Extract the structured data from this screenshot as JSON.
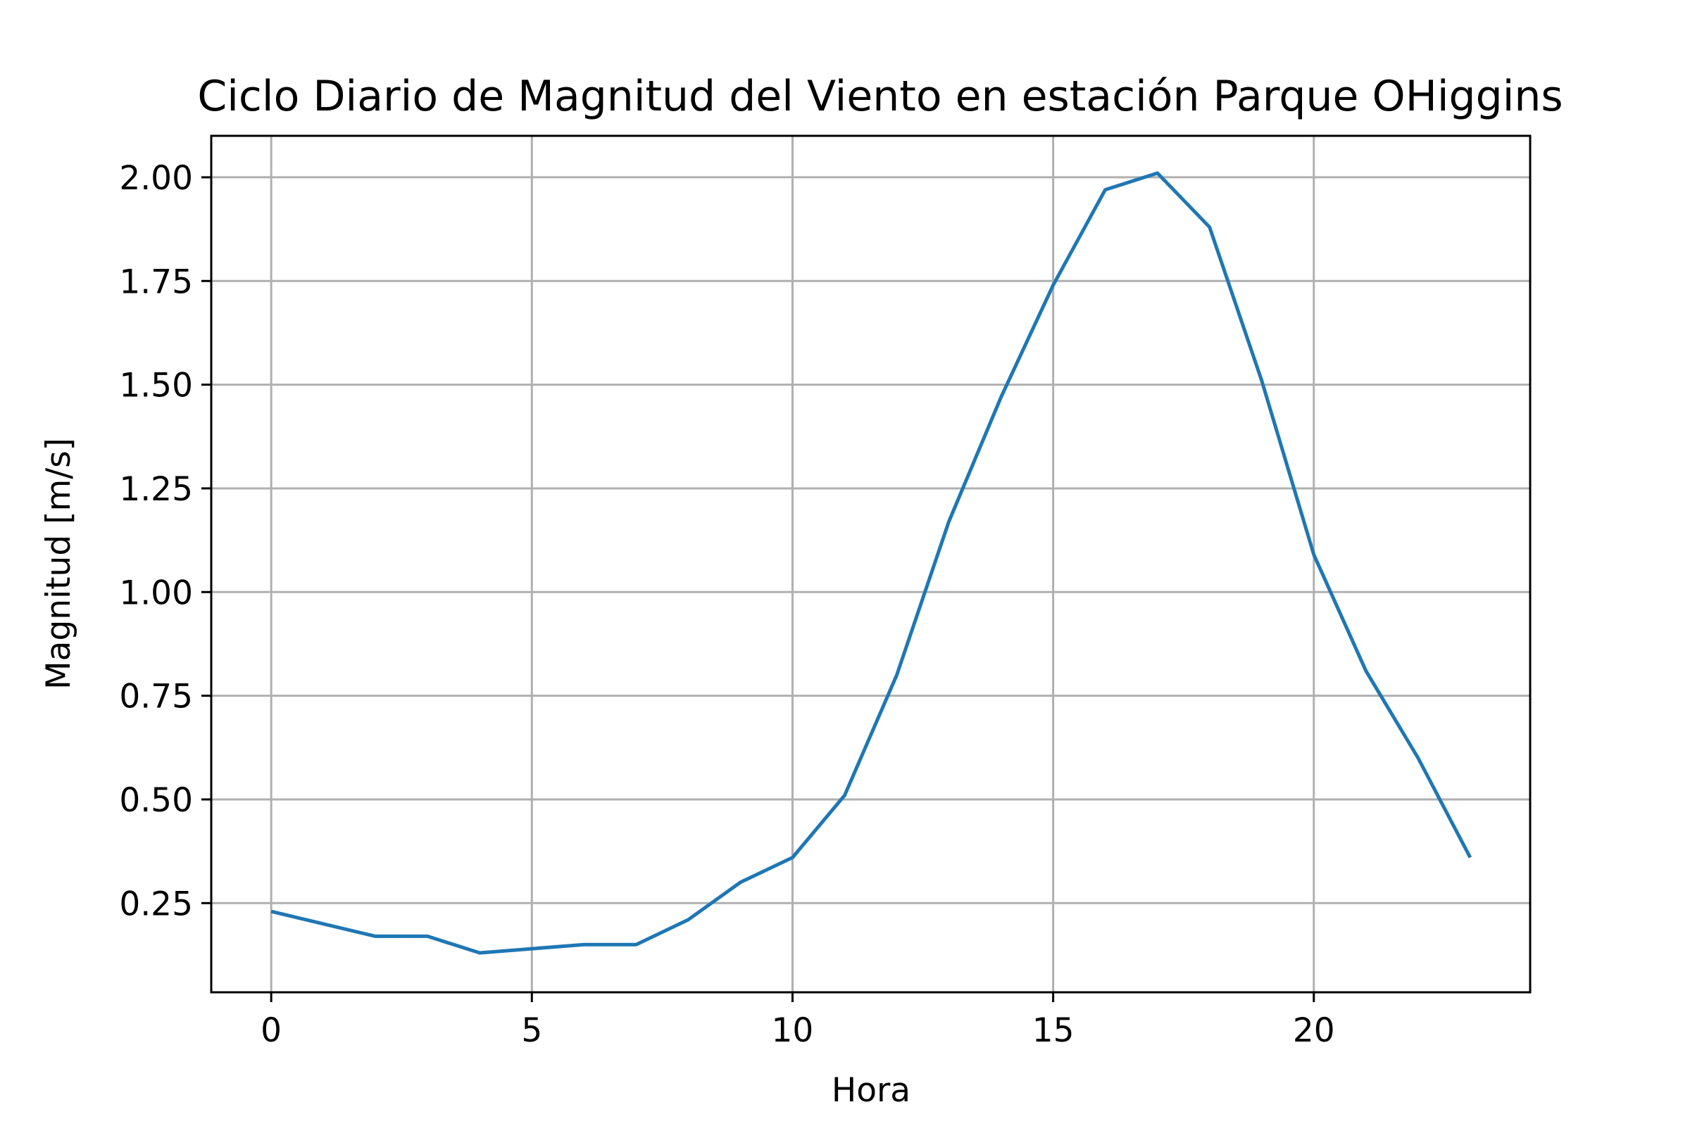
{
  "chart_data": {
    "type": "line",
    "title": "Ciclo Diario de Magnitud del Viento en estación Parque OHiggins",
    "xlabel": "Hora",
    "ylabel": "Magnitud [m/s]",
    "xlim": [
      -1.15,
      24.15
    ],
    "ylim": [
      0.035,
      2.1
    ],
    "xticks": [
      0,
      5,
      10,
      15,
      20
    ],
    "xtick_labels": [
      "0",
      "5",
      "10",
      "15",
      "20"
    ],
    "yticks": [
      0.25,
      0.5,
      0.75,
      1.0,
      1.25,
      1.5,
      1.75,
      2.0
    ],
    "ytick_labels": [
      "0.25",
      "0.50",
      "0.75",
      "1.00",
      "1.25",
      "1.50",
      "1.75",
      "2.00"
    ],
    "grid": true,
    "series": [
      {
        "color": "#1f77b4",
        "x": [
          0,
          1,
          2,
          3,
          4,
          5,
          6,
          7,
          8,
          9,
          10,
          11,
          12,
          13,
          14,
          15,
          16,
          17,
          18,
          19,
          20,
          21,
          22,
          23
        ],
        "y": [
          0.23,
          0.2,
          0.17,
          0.17,
          0.13,
          0.14,
          0.15,
          0.15,
          0.21,
          0.3,
          0.36,
          0.51,
          0.8,
          1.17,
          1.47,
          1.74,
          1.97,
          2.01,
          1.88,
          1.51,
          1.09,
          0.81,
          0.6,
          0.36
        ]
      }
    ]
  }
}
